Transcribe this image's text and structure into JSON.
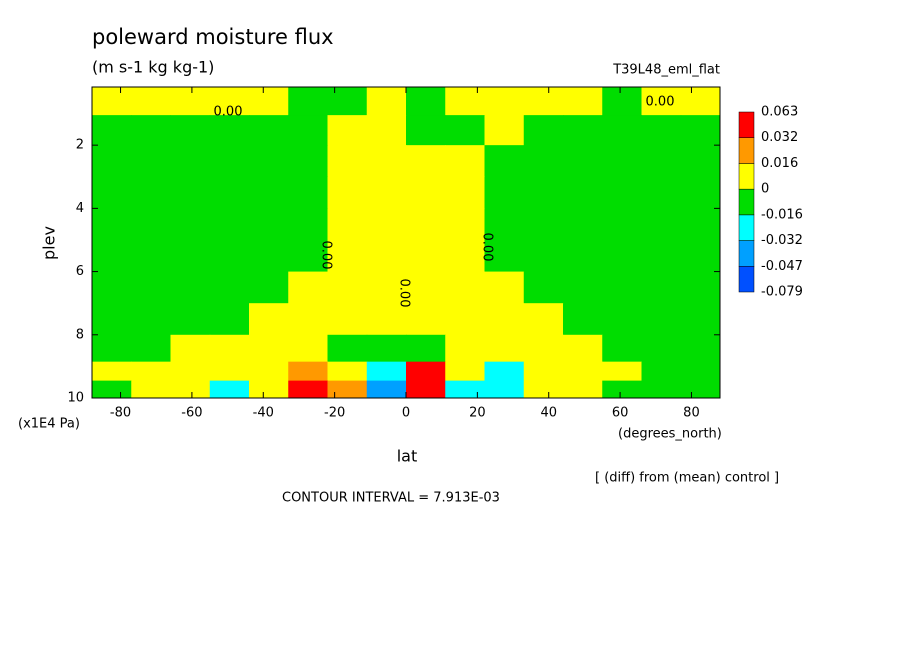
{
  "chart_data": {
    "type": "contour",
    "title": "poleward moisture flux",
    "subtitle": "(m s-1 kg kg-1)",
    "run_label": "T39L48_eml_flat",
    "x_label": "lat",
    "y_label": "plev",
    "x_unit": "(degrees_north)",
    "y_unit": "(x1E4 Pa)",
    "note": "[ (diff) from (mean) control ]",
    "contour_interval": "CONTOUR INTERVAL = 7.913E-03",
    "contour_labels": [
      "0.00",
      "0.00",
      "0.00",
      "0.00",
      "0.00"
    ],
    "xlim": [
      -88,
      88
    ],
    "ylim": [
      0.16,
      10
    ],
    "y_inverted": true,
    "xticks": [
      -80,
      -60,
      -40,
      -20,
      0,
      20,
      40,
      60,
      80
    ],
    "yticks": [
      2,
      4,
      6,
      8,
      10
    ],
    "levels": [
      -0.079,
      -0.047,
      -0.032,
      -0.016,
      0,
      0.016,
      0.032,
      0.063
    ],
    "colors": [
      "#0050ff",
      "#00a0ff",
      "#00ffff",
      "#00dd00",
      "#ffff00",
      "#ff9900",
      "#ff0000"
    ],
    "x": [
      -82.5,
      -71.5,
      -60.5,
      -49.5,
      -38.5,
      -27.5,
      -16.5,
      -5.5,
      5.5,
      16.5,
      27.5,
      38.5,
      49.5,
      60.5,
      71.5,
      82.5
    ],
    "y": [
      0.6,
      1.5,
      2.5,
      3.5,
      4.5,
      5.5,
      6.5,
      7.5,
      8.5,
      9.2,
      9.7
    ],
    "z": [
      [
        0.005,
        0.005,
        0.005,
        0.005,
        0.005,
        -0.005,
        -0.005,
        0.005,
        -0.005,
        0.005,
        0.005,
        0.005,
        0.005,
        -0.005,
        0.005,
        0.005
      ],
      [
        -0.005,
        -0.005,
        -0.005,
        -0.005,
        -0.005,
        -0.005,
        0.005,
        0.005,
        -0.005,
        -0.005,
        0.005,
        -0.005,
        -0.005,
        -0.005,
        -0.005,
        -0.005
      ],
      [
        -0.005,
        -0.005,
        -0.005,
        -0.005,
        -0.005,
        -0.005,
        0.005,
        0.005,
        0.005,
        0.005,
        -0.005,
        -0.005,
        -0.005,
        -0.005,
        -0.005,
        -0.005
      ],
      [
        -0.005,
        -0.005,
        -0.005,
        -0.005,
        -0.005,
        -0.005,
        0.005,
        0.005,
        0.005,
        0.005,
        -0.005,
        -0.005,
        -0.005,
        -0.005,
        -0.005,
        -0.005
      ],
      [
        -0.005,
        -0.005,
        -0.005,
        -0.005,
        -0.005,
        -0.005,
        0.005,
        0.005,
        0.005,
        0.005,
        -0.005,
        -0.005,
        -0.005,
        -0.005,
        -0.005,
        -0.005
      ],
      [
        -0.005,
        -0.005,
        -0.005,
        -0.005,
        -0.005,
        -0.005,
        0.005,
        0.005,
        0.005,
        0.005,
        -0.005,
        -0.005,
        -0.005,
        -0.005,
        -0.005,
        -0.005
      ],
      [
        -0.005,
        -0.005,
        -0.005,
        -0.005,
        -0.005,
        0.005,
        0.005,
        0.005,
        0.005,
        0.005,
        0.005,
        -0.005,
        -0.005,
        -0.005,
        -0.005,
        -0.005
      ],
      [
        -0.005,
        -0.005,
        -0.005,
        -0.005,
        0.005,
        0.005,
        0.005,
        0.005,
        0.005,
        0.005,
        0.005,
        0.005,
        -0.005,
        -0.005,
        -0.005,
        -0.005
      ],
      [
        -0.005,
        -0.005,
        0.005,
        0.005,
        0.005,
        0.005,
        -0.005,
        -0.005,
        -0.005,
        0.005,
        0.005,
        0.005,
        0.005,
        -0.005,
        -0.005,
        -0.005
      ],
      [
        0.005,
        0.005,
        0.005,
        0.005,
        0.005,
        0.02,
        0.005,
        -0.02,
        0.045,
        0.005,
        -0.02,
        0.005,
        0.005,
        0.005,
        -0.005,
        -0.005
      ],
      [
        -0.005,
        0.005,
        0.005,
        -0.02,
        0.005,
        0.045,
        0.02,
        -0.04,
        0.045,
        -0.02,
        -0.02,
        0.005,
        0.005,
        -0.005,
        -0.005,
        -0.005
      ]
    ]
  }
}
